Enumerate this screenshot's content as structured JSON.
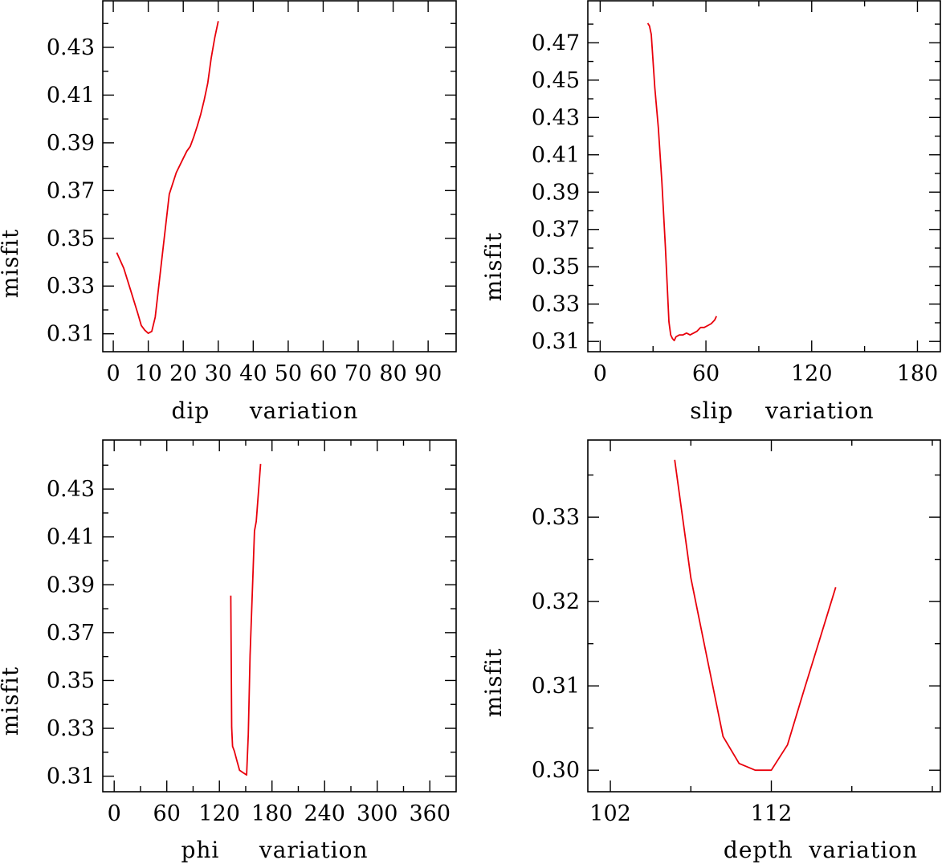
{
  "series_color": "#e8000b",
  "chart_data": [
    {
      "type": "line",
      "title": "",
      "xlabel": "dip     variation",
      "ylabel": "misfit",
      "xlim": [
        -3,
        98
      ],
      "ylim": [
        0.3025,
        0.4495
      ],
      "xticks": [
        0,
        10,
        20,
        30,
        40,
        50,
        60,
        70,
        80,
        90
      ],
      "xminor": [],
      "yticks": [
        0.31,
        0.33,
        0.35,
        0.37,
        0.39,
        0.41,
        0.43
      ],
      "yminor": [
        0.32,
        0.34,
        0.36,
        0.38,
        0.4,
        0.42,
        0.44
      ],
      "xtick_labels": [
        "0",
        "10",
        "20",
        "30",
        "40",
        "50",
        "60",
        "70",
        "80",
        "90"
      ],
      "ytick_labels": [
        "0.31",
        "0.33",
        "0.35",
        "0.37",
        "0.39",
        "0.41",
        "0.43"
      ],
      "series": [
        {
          "name": "misfit",
          "x": [
            1,
            3,
            5,
            7,
            8,
            9,
            10,
            11,
            12,
            14,
            16,
            18,
            20,
            21,
            22,
            23,
            24,
            25,
            26,
            27,
            28,
            29,
            30
          ],
          "y": [
            0.344,
            0.3375,
            0.328,
            0.3185,
            0.3135,
            0.3115,
            0.3102,
            0.311,
            0.317,
            0.343,
            0.3685,
            0.3775,
            0.3835,
            0.3865,
            0.3885,
            0.3925,
            0.397,
            0.402,
            0.408,
            0.415,
            0.4255,
            0.434,
            0.441
          ]
        }
      ]
    },
    {
      "type": "line",
      "title": "",
      "xlabel": "slip    variation",
      "ylabel": "misfit",
      "xlim": [
        -7,
        193
      ],
      "ylim": [
        0.3045,
        0.4925
      ],
      "xticks": [
        0,
        60,
        120,
        180
      ],
      "xminor": [
        30,
        90,
        150
      ],
      "yticks": [
        0.31,
        0.33,
        0.35,
        0.37,
        0.39,
        0.41,
        0.43,
        0.45,
        0.47
      ],
      "yminor": [
        0.32,
        0.34,
        0.36,
        0.38,
        0.4,
        0.42,
        0.44,
        0.46,
        0.48
      ],
      "xtick_labels": [
        "0",
        "60",
        "120",
        "180"
      ],
      "ytick_labels": [
        "0.31",
        "0.33",
        "0.35",
        "0.37",
        "0.39",
        "0.41",
        "0.43",
        "0.45",
        "0.47"
      ],
      "series": [
        {
          "name": "misfit",
          "x": [
            27,
            28,
            29,
            31,
            33,
            35,
            37,
            38,
            39,
            40,
            41,
            42,
            43,
            45,
            47,
            49,
            51,
            53,
            55,
            57,
            59,
            61,
            63,
            65,
            66
          ],
          "y": [
            0.4805,
            0.479,
            0.4745,
            0.446,
            0.4245,
            0.3955,
            0.3605,
            0.3405,
            0.3205,
            0.3135,
            0.3115,
            0.3105,
            0.3125,
            0.3135,
            0.3135,
            0.3145,
            0.3135,
            0.3145,
            0.3155,
            0.3175,
            0.3175,
            0.3185,
            0.3195,
            0.3215,
            0.3235
          ]
        }
      ]
    },
    {
      "type": "line",
      "title": "",
      "xlabel": "phi     variation",
      "ylabel": "misfit",
      "xlim": [
        -13,
        390
      ],
      "ylim": [
        0.3035,
        0.4505
      ],
      "xticks": [
        0,
        60,
        120,
        180,
        240,
        300,
        360
      ],
      "xminor": [
        30,
        90,
        150,
        210,
        270,
        330
      ],
      "yticks": [
        0.31,
        0.33,
        0.35,
        0.37,
        0.39,
        0.41,
        0.43
      ],
      "yminor": [
        0.32,
        0.34,
        0.36,
        0.38,
        0.4,
        0.42,
        0.44
      ],
      "xtick_labels": [
        "0",
        "60",
        "120",
        "180",
        "240",
        "300",
        "360"
      ],
      "ytick_labels": [
        "0.31",
        "0.33",
        "0.35",
        "0.37",
        "0.39",
        "0.41",
        "0.43"
      ],
      "series": [
        {
          "name": "misfit",
          "x": [
            133,
            134,
            135,
            137,
            140,
            143,
            147,
            151,
            153,
            155,
            158,
            160,
            162,
            167
          ],
          "y": [
            0.3855,
            0.3305,
            0.3225,
            0.3205,
            0.3165,
            0.3125,
            0.3115,
            0.3105,
            0.3275,
            0.3605,
            0.3915,
            0.4125,
            0.4165,
            0.4405
          ]
        }
      ]
    },
    {
      "type": "line",
      "title": "",
      "xlabel": "depth  variation",
      "ylabel": "misfit",
      "xlim": [
        100.6,
        122.5
      ],
      "ylim": [
        0.29745,
        0.33915
      ],
      "xticks": [
        102,
        112
      ],
      "xminor": [
        107,
        117,
        122
      ],
      "yticks": [
        0.3,
        0.31,
        0.32,
        0.33
      ],
      "yminor": [
        0.305,
        0.315,
        0.325,
        0.335
      ],
      "xtick_labels": [
        "102",
        "112"
      ],
      "ytick_labels": [
        "0.30",
        "0.31",
        "0.32",
        "0.33"
      ],
      "series": [
        {
          "name": "misfit",
          "x": [
            106,
            107,
            108,
            109,
            110,
            111,
            112,
            113,
            114,
            115,
            116
          ],
          "y": [
            0.3368,
            0.3228,
            0.3134,
            0.304,
            0.3008,
            0.3,
            0.3,
            0.303,
            0.3093,
            0.3155,
            0.3217
          ]
        }
      ]
    }
  ]
}
